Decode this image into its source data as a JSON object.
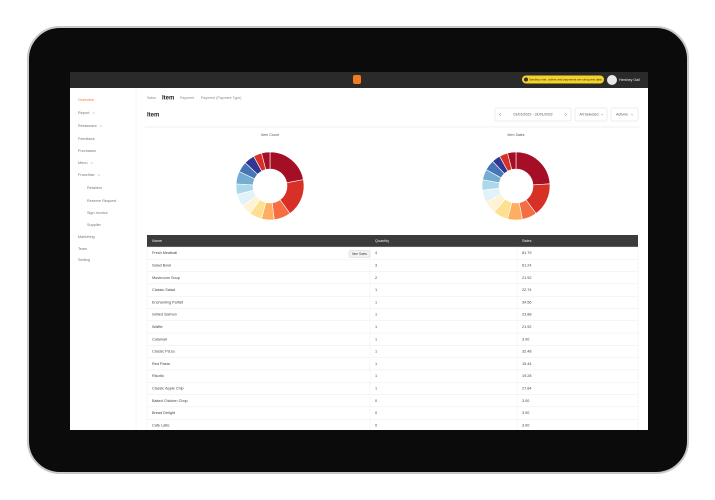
{
  "topbar": {
    "notice": "Sandbox site, orders and payments are using test data",
    "user": "Hershey Gail"
  },
  "sidebar": [
    "Overview",
    "Report",
    "Restaurant",
    "Feedback",
    "Purchases",
    "Menu",
    "Franchise",
    "Retailers",
    "Reserve Request",
    "Sign Invoice",
    "Supplier",
    "Marketing",
    "Team",
    "Setting"
  ],
  "tabs": [
    "Sales",
    "Item",
    "Payment",
    "Payment (Payment Type)"
  ],
  "page_title": "Item",
  "controls": {
    "date_range": "01/01/2022 - 31/01/2022",
    "filter": "All Selected",
    "actions": "Actions"
  },
  "charts": [
    {
      "type": "donut",
      "title": "Item Count",
      "values": [
        22,
        18,
        8,
        6,
        6,
        5,
        6,
        5,
        6,
        5,
        5,
        4,
        4
      ],
      "colors": [
        "#a50f26",
        "#d73027",
        "#f46d43",
        "#fdae61",
        "#fee090",
        "#fff3d6",
        "#e0f3f8",
        "#abd9e9",
        "#74add1",
        "#4575b4",
        "#313695",
        "#d73027",
        "#a50f26"
      ]
    },
    {
      "type": "donut",
      "title": "Item Sales",
      "values": [
        24,
        16,
        7,
        7,
        7,
        6,
        6,
        5,
        5,
        5,
        4,
        4,
        4
      ],
      "colors": [
        "#a50f26",
        "#d73027",
        "#f46d43",
        "#fdae61",
        "#fee090",
        "#fff3d6",
        "#e0f3f8",
        "#abd9e9",
        "#74add1",
        "#4575b4",
        "#313695",
        "#d73027",
        "#a50f26"
      ]
    }
  ],
  "table": {
    "columns": [
      "Name",
      "Quantity",
      "Sales"
    ],
    "tooltip": "Item Sales",
    "rows": [
      [
        "Fresh Meatball",
        "4",
        "81.79"
      ],
      [
        "Salad Bowl",
        "3",
        "61.24"
      ],
      [
        "Mushroom Soup",
        "2",
        "21.92"
      ],
      [
        "Classic Salad",
        "1",
        "22.74"
      ],
      [
        "Enchanting Parfait",
        "1",
        "34.56"
      ],
      [
        "Grilled Salmon",
        "1",
        "23.88"
      ],
      [
        "Waffle",
        "1",
        "21.92"
      ],
      [
        "Calamari",
        "1",
        "3.90"
      ],
      [
        "Classic Pizza",
        "1",
        "32.48"
      ],
      [
        "Red Pasta",
        "1",
        "15.44"
      ],
      [
        "Risotto",
        "1",
        "19.28"
      ],
      [
        "Classic Apple Chip",
        "1",
        "27.84"
      ],
      [
        "Baked Chicken Chop",
        "0",
        "3.00"
      ],
      [
        "Bread Delight",
        "0",
        "3.00"
      ],
      [
        "Cafe Latte",
        "0",
        "3.00"
      ]
    ]
  }
}
